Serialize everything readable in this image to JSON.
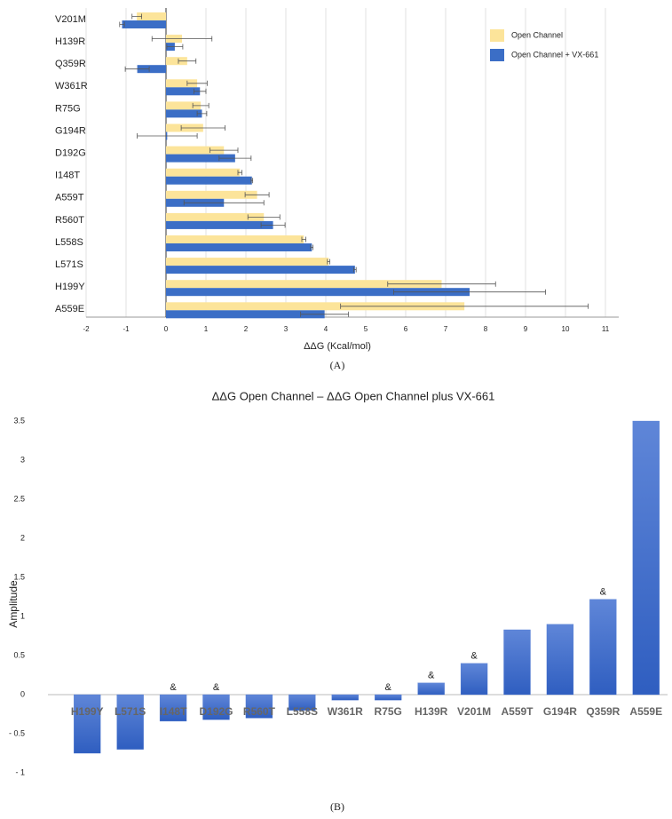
{
  "chart_data": [
    {
      "type": "bar",
      "orientation": "horizontal",
      "xlabel": "ΔΔG (Kcal/mol)",
      "caption": "(A)",
      "categories": [
        "V201M",
        "H139R",
        "Q359R",
        "W361R",
        "R75G",
        "G194R",
        "D192G",
        "I148T",
        "A559T",
        "R560T",
        "L558S",
        "L571S",
        "H199Y",
        "A559E"
      ],
      "series": [
        {
          "name": "Open Channel",
          "color": "#fce49a",
          "values": [
            -0.73,
            0.4,
            0.53,
            0.78,
            0.87,
            0.93,
            1.45,
            1.85,
            2.28,
            2.45,
            3.45,
            4.07,
            6.9,
            7.47
          ],
          "errors": [
            0.12,
            0.75,
            0.22,
            0.25,
            0.2,
            0.55,
            0.35,
            0.05,
            0.3,
            0.4,
            0.05,
            0.03,
            1.35,
            3.1
          ]
        },
        {
          "name": "Open Channel + VX-661",
          "color": "#3b6ec6",
          "values": [
            -1.1,
            0.22,
            -0.72,
            0.85,
            0.9,
            0.03,
            1.73,
            2.15,
            1.45,
            2.68,
            3.65,
            4.73,
            7.6,
            3.97
          ],
          "errors": [
            0.06,
            0.2,
            0.3,
            0.15,
            0.12,
            0.75,
            0.4,
            0.02,
            1.0,
            0.3,
            0.03,
            0.03,
            1.9,
            0.6
          ]
        }
      ],
      "xlim": [
        -2,
        11
      ],
      "xticks": [
        -2,
        -1,
        0,
        1,
        2,
        3,
        4,
        5,
        6,
        7,
        8,
        9,
        10,
        11
      ],
      "grid": true,
      "legend": "top-right"
    },
    {
      "type": "bar",
      "orientation": "vertical",
      "title": "ΔΔG Open Channel – ΔΔG Open Channel plus VX-661",
      "ylabel": "Amplitude",
      "caption": "(B)",
      "categories": [
        "H199Y",
        "L571S",
        "I148T",
        "D192G",
        "R560T",
        "L558S",
        "W361R",
        "R75G",
        "H139R",
        "V201M",
        "A559T",
        "G194R",
        "Q359R",
        "A559E"
      ],
      "values": [
        -0.75,
        -0.7,
        -0.34,
        -0.32,
        -0.3,
        -0.2,
        -0.07,
        -0.07,
        0.15,
        0.4,
        0.83,
        0.9,
        1.22,
        3.5
      ],
      "annotations": [
        null,
        null,
        "&",
        "&",
        null,
        null,
        null,
        "&",
        "&",
        "&",
        null,
        null,
        "&",
        null
      ],
      "color": "#4a76d2",
      "ylim": [
        -1,
        3.5
      ],
      "yticks": [
        {
          "value": -1,
          "label": "- 1"
        },
        {
          "value": -0.5,
          "label": "- 0.5"
        },
        0,
        0.5,
        1,
        1.5,
        2,
        2.5,
        3,
        3.5
      ],
      "grid": false
    }
  ]
}
